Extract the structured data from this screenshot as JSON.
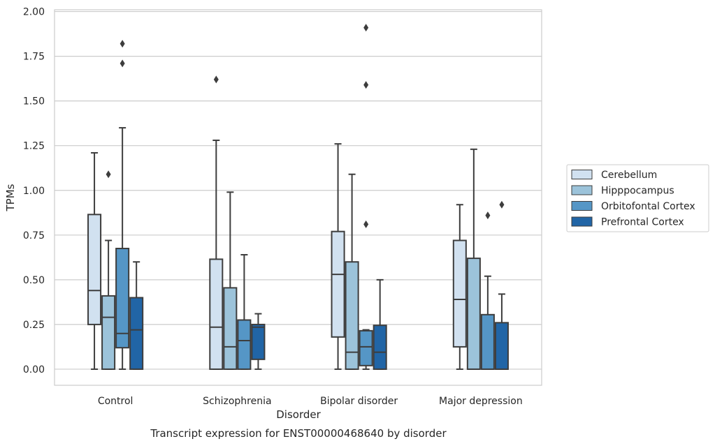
{
  "chart_data": {
    "type": "box",
    "title": "Transcript expression for ENST00000468640 by disorder",
    "xlabel": "Disorder",
    "ylabel": "TPMs",
    "ylim": [
      -0.09,
      2.01
    ],
    "yticks": [
      "0.00",
      "0.25",
      "0.50",
      "0.75",
      "1.00",
      "1.25",
      "1.50",
      "1.75",
      "2.00"
    ],
    "grid": "horizontal",
    "legend_position": "right",
    "categories": [
      "Control",
      "Schizophrenia",
      "Bipolar disorder",
      "Major depression"
    ],
    "series": [
      {
        "name": "Cerebellum",
        "color": "#d1e1f0",
        "boxes": [
          {
            "whisker_low": 0.0,
            "q1": 0.25,
            "median": 0.44,
            "q3": 0.865,
            "whisker_high": 1.21,
            "outliers": []
          },
          {
            "whisker_low": 0.0,
            "q1": 0.0,
            "median": 0.235,
            "q3": 0.615,
            "whisker_high": 1.28,
            "outliers": [
              1.62
            ]
          },
          {
            "whisker_low": 0.0,
            "q1": 0.18,
            "median": 0.53,
            "q3": 0.77,
            "whisker_high": 1.26,
            "outliers": []
          },
          {
            "whisker_low": 0.0,
            "q1": 0.125,
            "median": 0.39,
            "q3": 0.72,
            "whisker_high": 0.92,
            "outliers": []
          }
        ]
      },
      {
        "name": "Hipppocampus",
        "color": "#9cc3da",
        "boxes": [
          {
            "whisker_low": 0.0,
            "q1": 0.0,
            "median": 0.29,
            "q3": 0.41,
            "whisker_high": 0.72,
            "outliers": [
              1.09
            ]
          },
          {
            "whisker_low": 0.0,
            "q1": 0.0,
            "median": 0.125,
            "q3": 0.455,
            "whisker_high": 0.99,
            "outliers": []
          },
          {
            "whisker_low": 0.0,
            "q1": 0.0,
            "median": 0.095,
            "q3": 0.6,
            "whisker_high": 1.09,
            "outliers": []
          },
          {
            "whisker_low": 0.0,
            "q1": 0.0,
            "median": 0.0,
            "q3": 0.62,
            "whisker_high": 1.23,
            "outliers": []
          }
        ]
      },
      {
        "name": "Orbitofontal Cortex",
        "color": "#5596c6",
        "boxes": [
          {
            "whisker_low": 0.0,
            "q1": 0.12,
            "median": 0.2,
            "q3": 0.675,
            "whisker_high": 1.35,
            "outliers": [
              1.71,
              1.82
            ]
          },
          {
            "whisker_low": 0.0,
            "q1": 0.0,
            "median": 0.16,
            "q3": 0.275,
            "whisker_high": 0.64,
            "outliers": []
          },
          {
            "whisker_low": 0.0,
            "q1": 0.02,
            "median": 0.125,
            "q3": 0.215,
            "whisker_high": 0.22,
            "outliers": [
              0.81,
              1.59,
              1.91
            ]
          },
          {
            "whisker_low": 0.0,
            "q1": 0.0,
            "median": 0.0,
            "q3": 0.305,
            "whisker_high": 0.52,
            "outliers": [
              0.86
            ]
          }
        ]
      },
      {
        "name": "Prefrontal Cortex",
        "color": "#2165a6",
        "boxes": [
          {
            "whisker_low": 0.0,
            "q1": 0.0,
            "median": 0.22,
            "q3": 0.4,
            "whisker_high": 0.6,
            "outliers": []
          },
          {
            "whisker_low": 0.0,
            "q1": 0.055,
            "median": 0.235,
            "q3": 0.25,
            "whisker_high": 0.31,
            "outliers": []
          },
          {
            "whisker_low": 0.0,
            "q1": 0.0,
            "median": 0.095,
            "q3": 0.245,
            "whisker_high": 0.5,
            "outliers": []
          },
          {
            "whisker_low": 0.0,
            "q1": 0.0,
            "median": 0.0,
            "q3": 0.26,
            "whisker_high": 0.42,
            "outliers": [
              0.92
            ]
          }
        ]
      }
    ]
  }
}
